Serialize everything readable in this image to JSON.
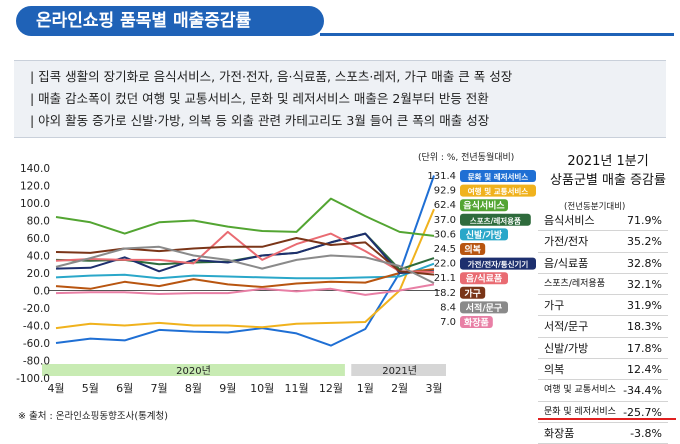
{
  "title": "온라인쇼핑 품목별 매출증감률",
  "summary": [
    "| 집콕 생활의 장기화로 음식서비스, 가전·전자, 음·식료품, 스포츠·레저, 가구 매출 큰 폭 성장",
    "| 매출 감소폭이 컸던 여행 및 교통서비스, 문화 및 레저서비스 매출은 2월부터 반등 전환",
    "| 야외 활동 증가로 신발·가방, 의복 등 외출 관련 카테고리도 3월 들어 큰 폭의 매출 성장"
  ],
  "chart_unit": "(단위 : %, 전년동월대비)",
  "period_labels": [
    "2020년",
    "2021년"
  ],
  "colors": {
    "title": "#1f62b7",
    "band2020": "#c8ebb3",
    "band2021": "#d6d6d6",
    "underline": "#e02020"
  },
  "chart_data": {
    "type": "line",
    "categories": [
      "4월",
      "5월",
      "6월",
      "7월",
      "8월",
      "9월",
      "10월",
      "11월",
      "12월",
      "1월",
      "2월",
      "3월"
    ],
    "y_ticks": [
      "140.0",
      "120.0",
      "100.0",
      "80.0",
      "60.0",
      "40.0",
      "20.0",
      "0.0",
      "-20.0",
      "-40.0",
      "-60.0",
      "-80.0",
      "-100.0"
    ],
    "ylim": [
      -100,
      140
    ],
    "series": [
      {
        "name": "문화 및 레저서비스",
        "color": "#1f6fd4",
        "end": "131.4",
        "values": [
          -60,
          -55,
          -57,
          -45,
          -47,
          -48,
          -43,
          -49,
          -63,
          -44,
          20,
          131.4
        ]
      },
      {
        "name": "여행 및 교통서비스",
        "color": "#f0b21d",
        "end": "92.9",
        "values": [
          -43,
          -38,
          -40,
          -37,
          -40,
          -40,
          -42,
          -38,
          -37,
          -36,
          0,
          92.9
        ]
      },
      {
        "name": "음식서비스",
        "color": "#53a532",
        "end": "62.4",
        "values": [
          84,
          78,
          65,
          78,
          80,
          73,
          68,
          67,
          105,
          85,
          67,
          62.4
        ]
      },
      {
        "name": "스포츠/레저용품",
        "color": "#2e6b3c",
        "end": "37.0",
        "values": [
          35,
          34,
          35,
          30,
          32,
          33,
          40,
          43,
          55,
          65,
          24,
          37.0
        ]
      },
      {
        "name": "신발/가방",
        "color": "#2aa7c9",
        "end": "30.6",
        "values": [
          15,
          17,
          18,
          14,
          17,
          16,
          15,
          14,
          14,
          15,
          16,
          30.6
        ]
      },
      {
        "name": "의복",
        "color": "#b85510",
        "end": "24.5",
        "values": [
          5,
          2,
          10,
          5,
          13,
          7,
          4,
          8,
          10,
          9,
          20,
          24.5
        ]
      },
      {
        "name": "가전/전자/통신기기",
        "color": "#1d2f6e",
        "end": "22.0",
        "values": [
          25,
          26,
          38,
          22,
          35,
          32,
          40,
          43,
          55,
          65,
          20,
          22.0
        ]
      },
      {
        "name": "음/식료품",
        "color": "#e96b72",
        "end": "21.1",
        "values": [
          34,
          36,
          35,
          35,
          31,
          67,
          35,
          53,
          65,
          45,
          22,
          21.1
        ]
      },
      {
        "name": "가구",
        "color": "#7a3518",
        "end": "18.2",
        "values": [
          44,
          43,
          48,
          45,
          48,
          50,
          50,
          60,
          52,
          55,
          22,
          18.2
        ]
      },
      {
        "name": "서적/문구",
        "color": "#8a8a8a",
        "end": "8.4",
        "values": [
          27,
          37,
          48,
          50,
          40,
          35,
          25,
          35,
          40,
          38,
          28,
          8.4
        ]
      },
      {
        "name": "화장품",
        "color": "#e87fa5",
        "end": "7.0",
        "values": [
          -3,
          -2,
          -2,
          -4,
          -3,
          -3,
          2,
          -1,
          2,
          -5,
          0,
          7.0
        ]
      }
    ]
  },
  "right_panel": {
    "title_line1": "2021년 1분기",
    "title_line2": "상품군별 매출 증감률",
    "note": "(전년동분기대비)",
    "rows": [
      {
        "name": "음식서비스",
        "value": "71.9%"
      },
      {
        "name": "가전/전자",
        "value": "35.2%"
      },
      {
        "name": "음/식료품",
        "value": "32.8%"
      },
      {
        "name": "스포츠/레저용품",
        "value": "32.1%"
      },
      {
        "name": "가구",
        "value": "31.9%"
      },
      {
        "name": "서적/문구",
        "value": "18.3%"
      },
      {
        "name": "신발/가방",
        "value": "17.8%"
      },
      {
        "name": "의복",
        "value": "12.4%"
      },
      {
        "name": "여행 및 교통서비스",
        "value": "-34.4%"
      },
      {
        "name": "문화 및 레저서비스",
        "value": "-25.7%"
      },
      {
        "name": "화장품",
        "value": "-3.8%"
      }
    ]
  },
  "source": "※ 출처 : 온라인쇼핑동향조사(통계청)"
}
